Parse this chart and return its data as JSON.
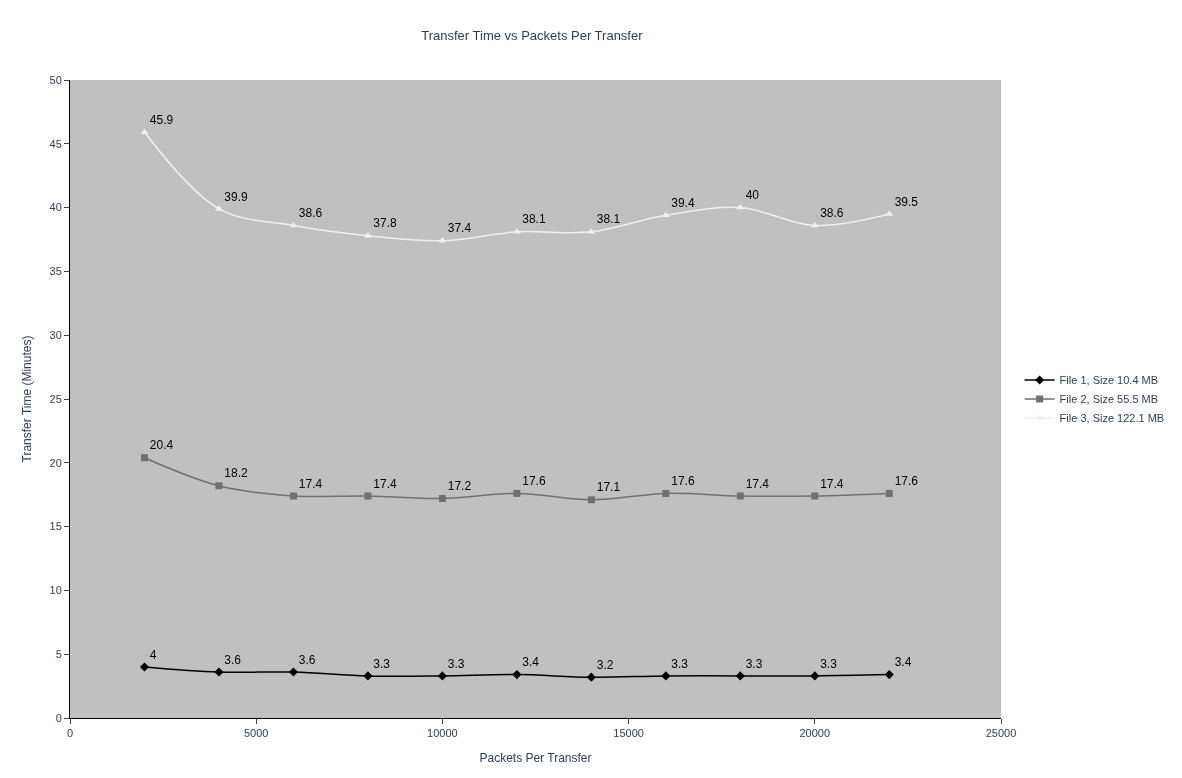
{
  "chart_data": {
    "type": "line",
    "title": "Transfer Time vs Packets Per Transfer",
    "xlabel": "Packets Per Transfer",
    "ylabel": "Transfer Time (Minutes)",
    "x": [
      2000,
      4000,
      6000,
      8000,
      10000,
      12000,
      14000,
      16000,
      18000,
      20000,
      22000
    ],
    "series": [
      {
        "name": "File 1, Size 10.4 MB",
        "color": "#000000",
        "marker": "diamond",
        "values": [
          4,
          3.6,
          3.6,
          3.3,
          3.3,
          3.4,
          3.2,
          3.3,
          3.3,
          3.3,
          3.4
        ]
      },
      {
        "name": "File 2, Size 55.5 MB",
        "color": "#707070",
        "marker": "square",
        "values": [
          20.4,
          18.2,
          17.4,
          17.4,
          17.2,
          17.6,
          17.1,
          17.6,
          17.4,
          17.4,
          17.6
        ]
      },
      {
        "name": "File 3, Size 122.1 MB",
        "color": "#f0f0f0",
        "marker": "triangle",
        "values": [
          45.9,
          39.9,
          38.6,
          37.8,
          37.4,
          38.1,
          38.1,
          39.4,
          40,
          38.6,
          39.5
        ]
      }
    ],
    "xlim": [
      0,
      25000
    ],
    "xticks": [
      0,
      5000,
      10000,
      15000,
      20000,
      25000
    ],
    "ylim": [
      0,
      50
    ],
    "yticks": [
      0,
      5,
      10,
      15,
      20,
      25,
      30,
      35,
      40,
      45,
      50
    ],
    "grid": false,
    "legend": "right",
    "data_labels": true,
    "line_style": "solid"
  }
}
